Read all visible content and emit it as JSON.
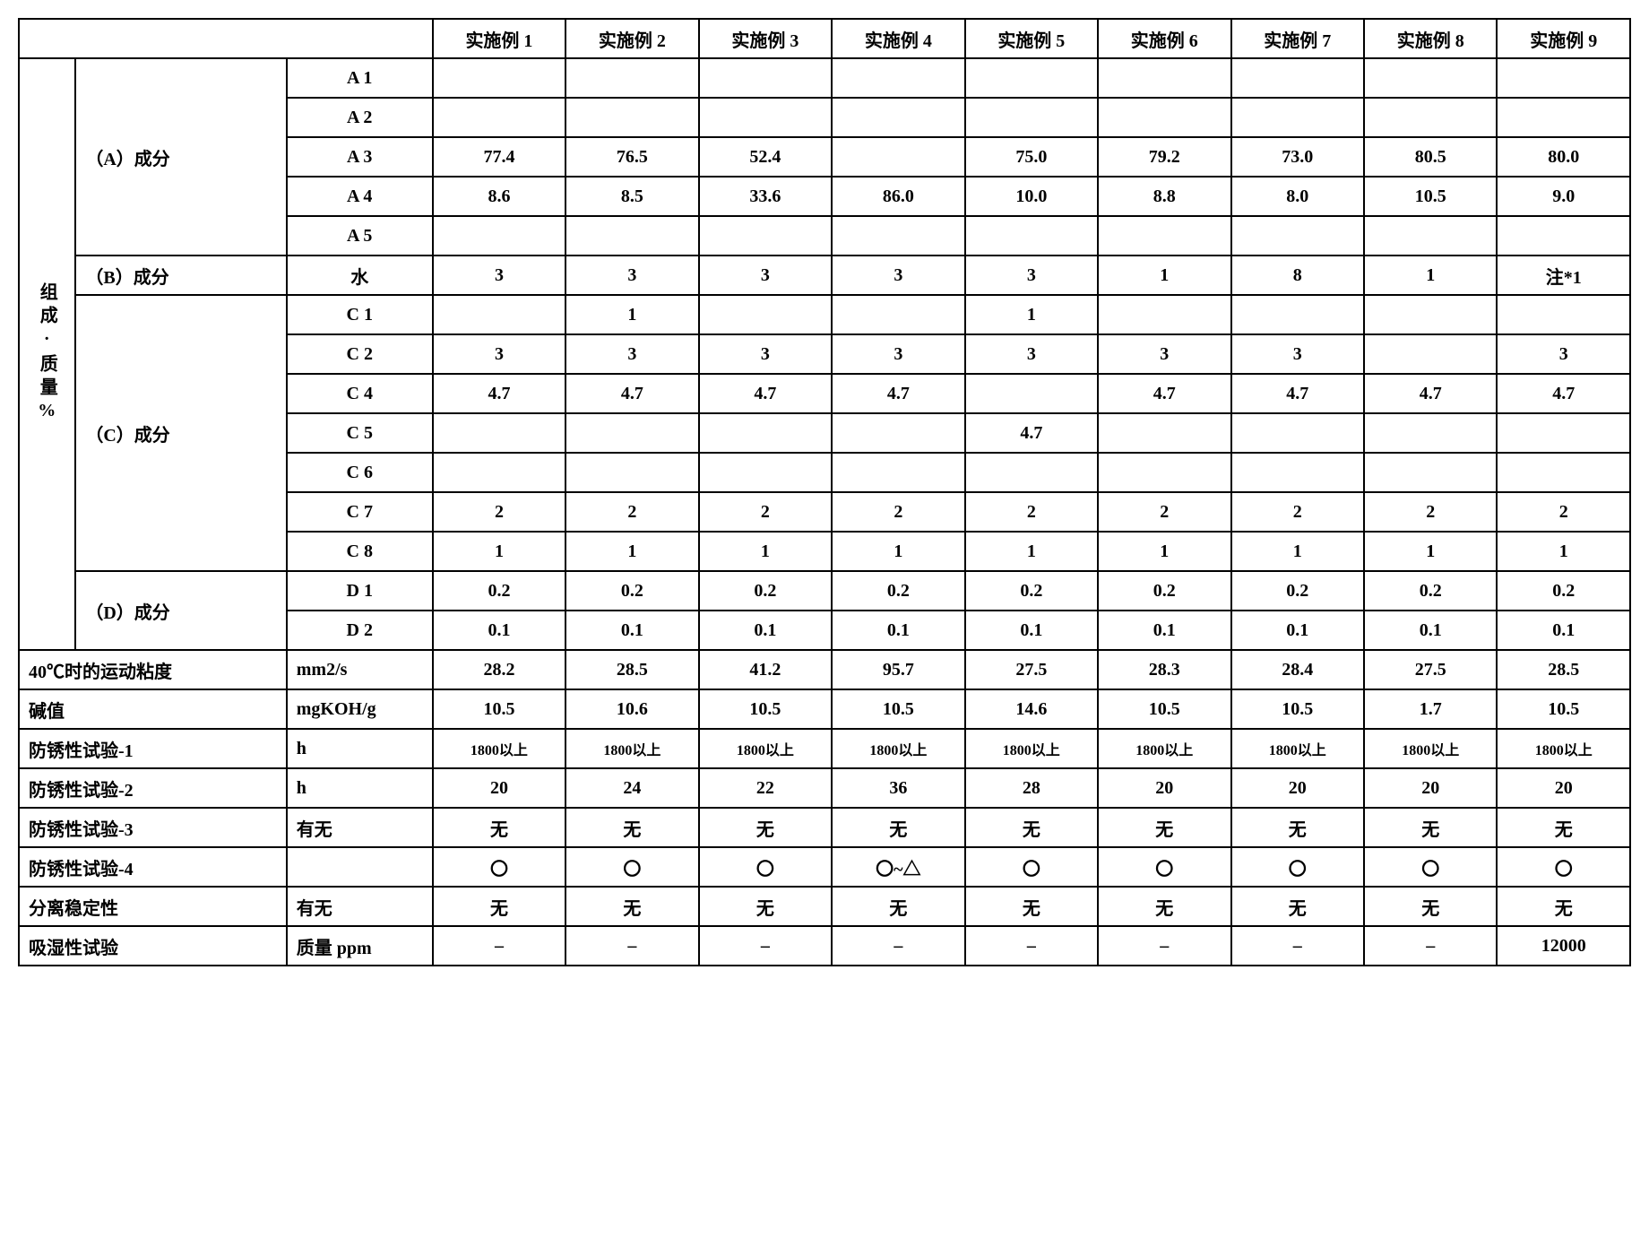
{
  "headers": {
    "ex1": "实施例 1",
    "ex2": "实施例 2",
    "ex3": "实施例 3",
    "ex4": "实施例 4",
    "ex5": "实施例 5",
    "ex6": "实施例 6",
    "ex7": "实施例 7",
    "ex8": "实施例 8",
    "ex9": "实施例 9"
  },
  "side_label": "组成·质量%",
  "groups": {
    "A": "（A）成分",
    "B": "（B）成分",
    "C": "（C）成分",
    "D": "（D）成分"
  },
  "sub": {
    "A1": "A 1",
    "A2": "A 2",
    "A3": "A 3",
    "A4": "A 4",
    "A5": "A 5",
    "Bw": "水",
    "C1": "C 1",
    "C2": "C 2",
    "C4": "C 4",
    "C5": "C 5",
    "C6": "C 6",
    "C7": "C 7",
    "C8": "C 8",
    "D1": "D 1",
    "D2": "D 2"
  },
  "rows": {
    "A1": {
      "v1": "",
      "v2": "",
      "v3": "",
      "v4": "",
      "v5": "",
      "v6": "",
      "v7": "",
      "v8": "",
      "v9": ""
    },
    "A2": {
      "v1": "",
      "v2": "",
      "v3": "",
      "v4": "",
      "v5": "",
      "v6": "",
      "v7": "",
      "v8": "",
      "v9": ""
    },
    "A3": {
      "v1": "77.4",
      "v2": "76.5",
      "v3": "52.4",
      "v4": "",
      "v5": "75.0",
      "v6": "79.2",
      "v7": "73.0",
      "v8": "80.5",
      "v9": "80.0"
    },
    "A4": {
      "v1": "8.6",
      "v2": "8.5",
      "v3": "33.6",
      "v4": "86.0",
      "v5": "10.0",
      "v6": "8.8",
      "v7": "8.0",
      "v8": "10.5",
      "v9": "9.0"
    },
    "A5": {
      "v1": "",
      "v2": "",
      "v3": "",
      "v4": "",
      "v5": "",
      "v6": "",
      "v7": "",
      "v8": "",
      "v9": ""
    },
    "Bw": {
      "v1": "3",
      "v2": "3",
      "v3": "3",
      "v4": "3",
      "v5": "3",
      "v6": "1",
      "v7": "8",
      "v8": "1",
      "v9": "注*1"
    },
    "C1": {
      "v1": "",
      "v2": "1",
      "v3": "",
      "v4": "",
      "v5": "1",
      "v6": "",
      "v7": "",
      "v8": "",
      "v9": ""
    },
    "C2": {
      "v1": "3",
      "v2": "3",
      "v3": "3",
      "v4": "3",
      "v5": "3",
      "v6": "3",
      "v7": "3",
      "v8": "",
      "v9": "3"
    },
    "C4": {
      "v1": "4.7",
      "v2": "4.7",
      "v3": "4.7",
      "v4": "4.7",
      "v5": "",
      "v6": "4.7",
      "v7": "4.7",
      "v8": "4.7",
      "v9": "4.7"
    },
    "C5": {
      "v1": "",
      "v2": "",
      "v3": "",
      "v4": "",
      "v5": "4.7",
      "v6": "",
      "v7": "",
      "v8": "",
      "v9": ""
    },
    "C6": {
      "v1": "",
      "v2": "",
      "v3": "",
      "v4": "",
      "v5": "",
      "v6": "",
      "v7": "",
      "v8": "",
      "v9": ""
    },
    "C7": {
      "v1": "2",
      "v2": "2",
      "v3": "2",
      "v4": "2",
      "v5": "2",
      "v6": "2",
      "v7": "2",
      "v8": "2",
      "v9": "2"
    },
    "C8": {
      "v1": "1",
      "v2": "1",
      "v3": "1",
      "v4": "1",
      "v5": "1",
      "v6": "1",
      "v7": "1",
      "v8": "1",
      "v9": "1"
    },
    "D1": {
      "v1": "0.2",
      "v2": "0.2",
      "v3": "0.2",
      "v4": "0.2",
      "v5": "0.2",
      "v6": "0.2",
      "v7": "0.2",
      "v8": "0.2",
      "v9": "0.2"
    },
    "D2": {
      "v1": "0.1",
      "v2": "0.1",
      "v3": "0.1",
      "v4": "0.1",
      "v5": "0.1",
      "v6": "0.1",
      "v7": "0.1",
      "v8": "0.1",
      "v9": "0.1"
    }
  },
  "props": {
    "visc": {
      "label": "40℃时的运动粘度",
      "unit": "mm2/s",
      "v1": "28.2",
      "v2": "28.5",
      "v3": "41.2",
      "v4": "95.7",
      "v5": "27.5",
      "v6": "28.3",
      "v7": "28.4",
      "v8": "27.5",
      "v9": "28.5"
    },
    "base": {
      "label": "碱值",
      "unit": "mgKOH/g",
      "v1": "10.5",
      "v2": "10.6",
      "v3": "10.5",
      "v4": "10.5",
      "v5": "14.6",
      "v6": "10.5",
      "v7": "10.5",
      "v8": "1.7",
      "v9": "10.5"
    },
    "rust1": {
      "label": "防锈性试验-1",
      "unit": "h",
      "v1": "1800以上",
      "v2": "1800以上",
      "v3": "1800以上",
      "v4": "1800以上",
      "v5": "1800以上",
      "v6": "1800以上",
      "v7": "1800以上",
      "v8": "1800以上",
      "v9": "1800以上"
    },
    "rust2": {
      "label": "防锈性试验-2",
      "unit": "h",
      "v1": "20",
      "v2": "24",
      "v3": "22",
      "v4": "36",
      "v5": "28",
      "v6": "20",
      "v7": "20",
      "v8": "20",
      "v9": "20"
    },
    "rust3": {
      "label": "防锈性试验-3",
      "unit": "有无",
      "v1": "无",
      "v2": "无",
      "v3": "无",
      "v4": "无",
      "v5": "无",
      "v6": "无",
      "v7": "无",
      "v8": "无",
      "v9": "无"
    },
    "rust4": {
      "label": "防锈性试验-4",
      "unit": "",
      "v1": "〇",
      "v2": "〇",
      "v3": "〇",
      "v4": "〇~△",
      "v5": "〇",
      "v6": "〇",
      "v7": "〇",
      "v8": "〇",
      "v9": "〇"
    },
    "sep": {
      "label": "分离稳定性",
      "unit": "有无",
      "v1": "无",
      "v2": "无",
      "v3": "无",
      "v4": "无",
      "v5": "无",
      "v6": "无",
      "v7": "无",
      "v8": "无",
      "v9": "无"
    },
    "moist": {
      "label": "吸湿性试验",
      "unit": "质量 ppm",
      "v1": "–",
      "v2": "–",
      "v3": "–",
      "v4": "–",
      "v5": "–",
      "v6": "–",
      "v7": "–",
      "v8": "–",
      "v9": "12000"
    }
  },
  "style": {
    "border_color": "#000000",
    "background": "#ffffff",
    "font_family": "SimSun",
    "font_size_pt": 15,
    "font_weight": "bold"
  }
}
